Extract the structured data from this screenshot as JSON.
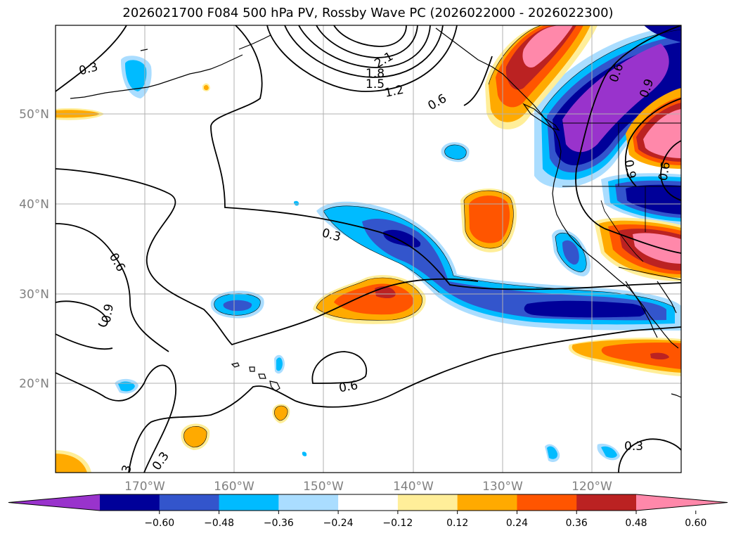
{
  "title": "2026021700 F084 500 hPa PV, Rossby Wave PC (2026022000 - 2026022300)",
  "lat_labels": [
    "50°N",
    "40°N",
    "30°N",
    "20°N"
  ],
  "lon_labels": [
    "170°W",
    "160°W",
    "150°W",
    "140°W",
    "130°W",
    "120°W"
  ],
  "colorbar": {
    "colors": [
      "#9933cc",
      "#000099",
      "#3355cc",
      "#00bbff",
      "#aaddff",
      "#ffffff",
      "#ffee99",
      "#ffaa00",
      "#ff5500",
      "#bb2222",
      "#ff88aa"
    ],
    "tick_labels": [
      "−0.60",
      "−0.48",
      "−0.36",
      "−0.24",
      "−0.12",
      "0.12",
      "0.24",
      "0.36",
      "0.48",
      "0.60"
    ]
  },
  "contour_labels": [
    "0.3",
    "2.1",
    "1.8",
    "1.5",
    "1.2",
    "0.6",
    "0.6",
    "0.9",
    "0.6",
    "0.9",
    "0.3",
    "0.6",
    "0.9",
    "0.6",
    "0.3",
    "3",
    "0.3"
  ],
  "colors": {
    "coast": "#000000",
    "grid": "#b0b0b0",
    "contour": "#000000"
  }
}
